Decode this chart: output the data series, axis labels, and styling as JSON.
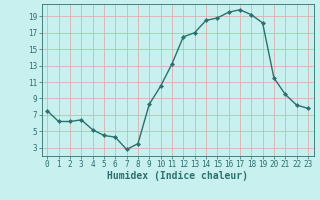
{
  "x": [
    0,
    1,
    2,
    3,
    4,
    5,
    6,
    7,
    8,
    9,
    10,
    11,
    12,
    13,
    14,
    15,
    16,
    17,
    18,
    19,
    20,
    21,
    22,
    23
  ],
  "y": [
    7.5,
    6.2,
    6.2,
    6.4,
    5.2,
    4.5,
    4.3,
    2.8,
    3.5,
    8.3,
    10.5,
    13.2,
    16.5,
    17.0,
    18.5,
    18.8,
    19.5,
    19.8,
    19.2,
    18.2,
    11.5,
    9.5,
    8.2,
    7.8
  ],
  "xlabel": "Humidex (Indice chaleur)",
  "xlim": [
    -0.5,
    23.5
  ],
  "ylim": [
    2.0,
    20.5
  ],
  "yticks": [
    3,
    5,
    7,
    9,
    11,
    13,
    15,
    17,
    19
  ],
  "xticks": [
    0,
    1,
    2,
    3,
    4,
    5,
    6,
    7,
    8,
    9,
    10,
    11,
    12,
    13,
    14,
    15,
    16,
    17,
    18,
    19,
    20,
    21,
    22,
    23
  ],
  "line_color": "#2d7070",
  "marker": "D",
  "marker_size": 2.0,
  "bg_color": "#c8f0ee",
  "grid_color": "#ddb0b0",
  "tick_label_fontsize": 5.5,
  "xlabel_fontsize": 7.0,
  "line_width": 1.0
}
